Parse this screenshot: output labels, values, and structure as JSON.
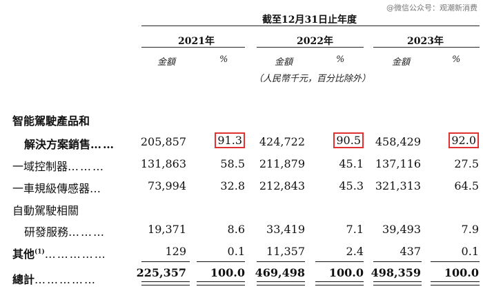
{
  "watermark": "@微信公众号：观潮新消费",
  "header": {
    "period_title": "截至12月31日止年度",
    "years": [
      "2021年",
      "2022年",
      "2023年"
    ],
    "amount_label": "金額",
    "pct_label": "%",
    "unit_note": "（人民幣千元，百分比除外）"
  },
  "rows": [
    {
      "label": "智能駕駛產品和",
      "values": [
        "",
        "",
        "",
        "",
        "",
        ""
      ]
    },
    {
      "label": "解決方案銷售",
      "dots": "……",
      "values": [
        "205,857",
        "91.3",
        "424,722",
        "90.5",
        "458,429",
        "92.0"
      ]
    },
    {
      "label": "一域控制器",
      "dots": "………",
      "values": [
        "131,863",
        "58.5",
        "211,879",
        "45.1",
        "137,116",
        "27.5"
      ]
    },
    {
      "label": "一車規級傳感器",
      "dots": "…",
      "values": [
        "73,994",
        "32.8",
        "212,843",
        "45.3",
        "321,313",
        "64.5"
      ]
    },
    {
      "label": "自動駕駛相關",
      "values": [
        "",
        "",
        "",
        "",
        "",
        ""
      ]
    },
    {
      "label": "研發服務",
      "dots": "………",
      "values": [
        "19,371",
        "8.6",
        "33,419",
        "7.1",
        "39,493",
        "7.9"
      ]
    },
    {
      "label": "其他",
      "sup": "(1)",
      "dots": "……………",
      "values": [
        "129",
        "0.1",
        "11,357",
        "2.4",
        "437",
        "0.1"
      ]
    },
    {
      "label": "總計",
      "dots": "……………",
      "values": [
        "225,357",
        "100.0",
        "469,498",
        "100.0",
        "498,359",
        "100.0"
      ]
    }
  ]
}
